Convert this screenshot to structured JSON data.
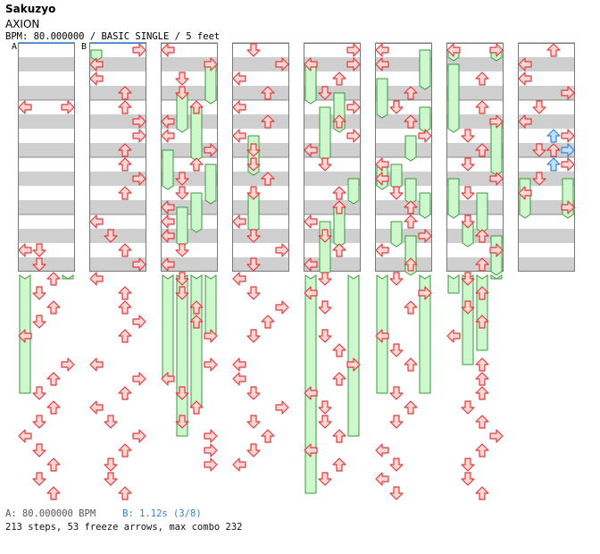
{
  "header": {
    "artist": "Sakuzyo",
    "title": "AXION",
    "info": "BPM: 80.000000 / BASIC SINGLE / 5 feet",
    "marker_a": "A",
    "marker_b": "B"
  },
  "footer": {
    "bpm_label": "A: 80.000000 BPM",
    "stop_label": "B: 1.12s (3/8)",
    "stats": "213 steps, 53 freeze arrows, max combo 232"
  },
  "colors": {
    "stripe": "#cfcfcf",
    "arrow_fill": "#ffd6d6",
    "arrow_stroke": "#e03a3a",
    "freeze_fill": "#cdf7cd",
    "freeze_stroke": "#3a9a3a",
    "alt_arrow_fill": "#bfe0ff",
    "alt_arrow_stroke": "#3a84d8",
    "marker_line": "#3a7fd0"
  },
  "chart": {
    "columns": [
      {
        "arrows": [
          [
            2,
            0
          ],
          [
            2,
            3
          ],
          [
            7,
            0
          ],
          [
            7,
            1
          ],
          [
            7.5,
            1
          ],
          [
            8,
            2
          ],
          [
            8.5,
            1
          ],
          [
            9,
            2
          ],
          [
            9.5,
            1
          ],
          [
            10,
            0
          ],
          [
            11,
            3
          ],
          [
            11.5,
            2
          ],
          [
            12,
            1
          ],
          [
            12.5,
            2
          ],
          [
            13,
            1
          ],
          [
            13.5,
            0
          ],
          [
            14,
            1
          ],
          [
            14.5,
            2
          ],
          [
            15,
            1
          ],
          [
            15.5,
            2
          ]
        ],
        "freezes": [
          [
            8,
            3,
            12
          ],
          [
            12,
            0,
            16
          ]
        ]
      },
      {
        "arrows": [
          [
            0,
            3
          ],
          [
            0.5,
            0
          ],
          [
            1,
            0
          ],
          [
            1.5,
            2
          ],
          [
            2,
            2
          ],
          [
            2.5,
            3
          ],
          [
            3,
            3
          ],
          [
            3.5,
            2
          ],
          [
            4,
            2
          ],
          [
            4.5,
            3
          ],
          [
            5,
            2
          ],
          [
            6,
            0
          ],
          [
            6.5,
            1
          ],
          [
            7,
            2
          ],
          [
            7.5,
            3
          ],
          [
            8,
            0
          ],
          [
            8.5,
            2
          ],
          [
            9,
            2
          ],
          [
            9.5,
            3
          ],
          [
            10,
            2
          ],
          [
            11,
            0
          ],
          [
            11.5,
            3
          ],
          [
            12,
            2
          ],
          [
            12.5,
            0
          ],
          [
            13,
            1
          ],
          [
            13.5,
            3
          ],
          [
            14,
            2
          ],
          [
            14.5,
            1
          ],
          [
            15,
            1
          ],
          [
            15.5,
            2
          ]
        ],
        "freezes": [
          [
            0,
            0,
            0.5
          ]
        ]
      },
      {
        "arrows": [
          [
            0,
            0
          ],
          [
            0.5,
            3
          ],
          [
            1,
            1
          ],
          [
            1.5,
            1
          ],
          [
            2,
            2
          ],
          [
            2.5,
            0
          ],
          [
            3,
            0
          ],
          [
            3.5,
            3
          ],
          [
            4,
            2
          ],
          [
            4.5,
            1
          ],
          [
            5,
            1
          ],
          [
            5.5,
            0
          ],
          [
            6,
            0
          ],
          [
            6.5,
            0
          ],
          [
            7,
            1
          ],
          [
            7.5,
            0
          ],
          [
            8,
            1
          ],
          [
            8.5,
            1
          ],
          [
            9,
            2
          ],
          [
            9.5,
            2
          ],
          [
            10,
            3
          ],
          [
            11,
            3
          ],
          [
            11.5,
            0
          ],
          [
            12,
            1
          ],
          [
            12.5,
            2
          ],
          [
            13,
            1
          ],
          [
            13.5,
            3
          ],
          [
            14,
            3
          ],
          [
            14.5,
            3
          ]
        ],
        "freezes": [
          [
            0.5,
            3,
            2
          ],
          [
            1.5,
            1,
            3
          ],
          [
            2,
            2,
            4
          ],
          [
            3.5,
            0,
            5
          ],
          [
            4,
            3,
            5.5
          ],
          [
            5,
            2,
            6.5
          ],
          [
            5.5,
            1,
            7
          ],
          [
            8,
            0,
            9.5
          ],
          [
            8.5,
            1,
            9.5
          ],
          [
            9.5,
            2,
            11
          ],
          [
            10,
            3,
            11.5
          ],
          [
            11.5,
            0,
            13
          ],
          [
            12.5,
            2,
            14
          ],
          [
            13.5,
            1,
            15
          ]
        ]
      },
      {
        "arrows": [
          [
            0,
            1
          ],
          [
            0.5,
            3
          ],
          [
            1,
            0
          ],
          [
            1.5,
            2
          ],
          [
            2,
            0
          ],
          [
            2.5,
            2
          ],
          [
            3,
            0
          ],
          [
            3.5,
            1
          ],
          [
            4,
            1
          ],
          [
            4.5,
            2
          ],
          [
            5,
            1
          ],
          [
            6,
            0
          ],
          [
            6.5,
            1
          ],
          [
            7,
            3
          ],
          [
            7.5,
            1
          ],
          [
            8,
            0
          ],
          [
            8.5,
            1
          ],
          [
            9,
            3
          ],
          [
            9.5,
            2
          ],
          [
            10,
            1
          ],
          [
            11,
            0
          ],
          [
            11.5,
            0
          ],
          [
            12,
            1
          ],
          [
            12.5,
            3
          ],
          [
            13,
            1
          ],
          [
            13.5,
            2
          ],
          [
            14,
            1
          ],
          [
            14.5,
            0
          ]
        ],
        "freezes": [
          [
            3,
            1,
            4.5
          ],
          [
            5,
            1,
            6.5
          ]
        ]
      },
      {
        "arrows": [
          [
            0,
            3
          ],
          [
            0.5,
            0
          ],
          [
            0.5,
            3
          ],
          [
            1,
            2
          ],
          [
            1.5,
            1
          ],
          [
            2,
            3
          ],
          [
            2.5,
            2
          ],
          [
            3,
            3
          ],
          [
            3.5,
            0
          ],
          [
            4,
            1
          ],
          [
            5,
            2
          ],
          [
            5.5,
            2
          ],
          [
            6,
            0
          ],
          [
            6.5,
            1
          ],
          [
            7,
            2
          ],
          [
            7.5,
            0
          ],
          [
            8,
            1
          ],
          [
            8.5,
            0
          ],
          [
            9,
            1
          ],
          [
            10,
            1
          ],
          [
            10.5,
            2
          ],
          [
            11,
            3
          ],
          [
            11.5,
            2
          ],
          [
            12,
            0
          ],
          [
            12.5,
            1
          ],
          [
            13,
            1
          ],
          [
            13.5,
            2
          ],
          [
            14,
            0
          ],
          [
            14.5,
            2
          ],
          [
            15,
            1
          ]
        ],
        "freezes": [
          [
            0.5,
            0,
            2
          ],
          [
            1.5,
            2,
            3
          ],
          [
            2,
            1,
            4
          ],
          [
            4.5,
            3,
            5.5
          ],
          [
            5.5,
            2,
            7
          ],
          [
            6,
            1,
            8
          ],
          [
            13.5,
            3,
            15
          ],
          [
            15.5,
            0,
            16
          ]
        ]
      },
      {
        "arrows": [
          [
            0,
            0
          ],
          [
            0.5,
            0
          ],
          [
            1.5,
            2
          ],
          [
            2,
            1
          ],
          [
            2.5,
            2
          ],
          [
            3,
            3
          ],
          [
            4,
            0
          ],
          [
            4.5,
            0
          ],
          [
            5,
            1
          ],
          [
            5.5,
            2
          ],
          [
            6,
            2
          ],
          [
            6.5,
            3
          ],
          [
            7,
            0
          ],
          [
            7.5,
            2
          ],
          [
            8,
            1
          ],
          [
            8.5,
            3
          ],
          [
            9,
            2
          ],
          [
            10,
            0
          ],
          [
            10.5,
            1
          ],
          [
            11,
            2
          ],
          [
            12,
            1
          ],
          [
            12.5,
            2
          ],
          [
            13,
            1
          ],
          [
            14,
            0
          ],
          [
            14.5,
            1
          ],
          [
            15,
            0
          ],
          [
            15.5,
            1
          ]
        ],
        "freezes": [
          [
            0,
            3,
            1.5
          ],
          [
            1,
            0,
            2.5
          ],
          [
            2,
            3,
            3
          ],
          [
            3,
            2,
            4
          ],
          [
            4,
            0,
            5
          ],
          [
            4,
            1,
            5
          ],
          [
            4.5,
            2,
            5.5
          ],
          [
            5,
            3,
            6
          ],
          [
            6,
            1,
            7
          ],
          [
            6.5,
            2,
            8
          ],
          [
            12,
            0,
            16
          ],
          [
            12,
            3,
            16
          ]
        ]
      },
      {
        "arrows": [
          [
            0,
            0
          ],
          [
            0,
            3
          ],
          [
            1,
            2
          ],
          [
            2,
            2
          ],
          [
            2.5,
            3
          ],
          [
            3,
            1
          ],
          [
            3.5,
            2
          ],
          [
            4,
            1
          ],
          [
            4.5,
            3
          ],
          [
            5,
            1
          ],
          [
            6,
            1
          ],
          [
            6.5,
            2
          ],
          [
            7,
            3
          ],
          [
            7.5,
            2
          ],
          [
            8,
            1
          ],
          [
            8.5,
            2
          ],
          [
            9,
            1
          ],
          [
            9.5,
            2
          ],
          [
            10,
            0
          ],
          [
            11,
            2
          ],
          [
            11.5,
            2
          ],
          [
            12,
            2
          ],
          [
            12.5,
            1
          ],
          [
            13,
            2
          ],
          [
            13.5,
            3
          ],
          [
            14,
            2
          ],
          [
            14.5,
            1
          ],
          [
            15,
            1
          ],
          [
            15.5,
            2
          ]
        ],
        "freezes": [
          [
            0,
            0,
            0.5
          ],
          [
            0,
            3,
            0.5
          ],
          [
            0.5,
            0,
            3
          ],
          [
            2.5,
            3,
            4.5
          ],
          [
            4.5,
            0,
            6
          ],
          [
            5,
            2,
            6.5
          ],
          [
            6,
            1,
            7
          ],
          [
            6.5,
            3,
            8
          ],
          [
            8.5,
            0,
            10
          ],
          [
            8,
            3,
            10
          ],
          [
            10.5,
            2,
            11.5
          ],
          [
            11,
            1,
            12
          ]
        ]
      },
      {
        "arrows": [
          [
            0,
            2
          ],
          [
            0.5,
            0
          ],
          [
            1,
            0
          ],
          [
            1.5,
            3
          ],
          [
            2,
            1
          ],
          [
            2.5,
            0
          ],
          [
            3,
            3
          ],
          [
            3.5,
            1
          ],
          [
            3.5,
            2
          ],
          [
            4,
            3
          ],
          [
            4.5,
            1
          ],
          [
            5,
            0
          ],
          [
            5.5,
            3
          ]
        ],
        "freezes": [
          [
            4.5,
            0,
            6
          ],
          [
            4.5,
            3,
            6
          ]
        ],
        "blue_arrows": [
          [
            3,
            2
          ],
          [
            3.5,
            3
          ],
          [
            4,
            2
          ]
        ]
      }
    ]
  }
}
